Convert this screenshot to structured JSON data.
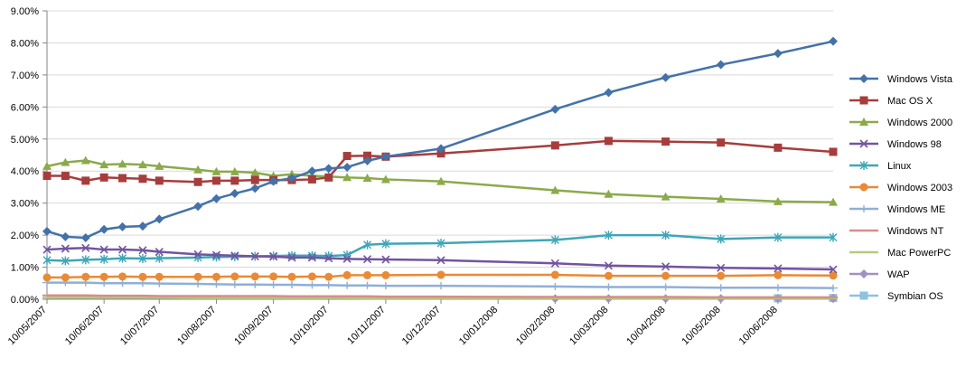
{
  "chart_data": {
    "type": "line",
    "title": "",
    "xlabel": "",
    "ylabel": "",
    "ylim": [
      0,
      9
    ],
    "y_ticks": [
      0,
      1,
      2,
      3,
      4,
      5,
      6,
      7,
      8,
      9
    ],
    "y_tick_labels": [
      "0.00%",
      "1.00%",
      "2.00%",
      "3.00%",
      "4.00%",
      "5.00%",
      "6.00%",
      "7.00%",
      "8.00%",
      "9.00%"
    ],
    "x_tick_labels": [
      "10/05/2007",
      "10/06/2007",
      "10/07/2007",
      "10/08/2007",
      "10/09/2007",
      "10/10/2007",
      "10/11/2007",
      "10/12/2007",
      "10/01/2008",
      "10/02/2008",
      "10/03/2008",
      "10/04/2008",
      "10/05/2008",
      "10/06/2008"
    ],
    "x_range": [
      "2007-05-10",
      "2008-07-10"
    ],
    "grid": "horizontal",
    "legend_position": "right",
    "x": [
      "2007-05-10",
      "2007-05-20",
      "2007-05-31",
      "2007-06-10",
      "2007-06-20",
      "2007-07-01",
      "2007-07-10",
      "2007-07-31",
      "2007-08-10",
      "2007-08-20",
      "2007-08-31",
      "2007-09-10",
      "2007-09-20",
      "2007-10-01",
      "2007-10-10",
      "2007-10-20",
      "2007-10-31",
      "2007-11-10",
      "2007-12-10",
      "2008-02-10",
      "2008-03-10",
      "2008-04-10",
      "2008-05-10",
      "2008-06-10",
      "2008-07-10"
    ],
    "series": [
      {
        "name": "Windows Vista",
        "color": "#4472A8",
        "marker": "diamond",
        "values": [
          2.12,
          1.95,
          1.92,
          2.18,
          2.26,
          2.28,
          2.5,
          2.9,
          3.14,
          3.3,
          3.46,
          3.68,
          3.78,
          4.0,
          4.08,
          4.12,
          4.32,
          4.45,
          4.7,
          5.93,
          6.45,
          6.92,
          7.32,
          7.67,
          8.05
        ]
      },
      {
        "name": "Mac OS X",
        "color": "#A63D3C",
        "marker": "square",
        "values": [
          3.85,
          3.85,
          3.7,
          3.8,
          3.78,
          3.76,
          3.7,
          3.66,
          3.7,
          3.7,
          3.72,
          3.72,
          3.72,
          3.74,
          3.8,
          4.47,
          4.48,
          4.45,
          4.55,
          4.8,
          4.94,
          4.92,
          4.89,
          4.73,
          4.6
        ]
      },
      {
        "name": "Windows 2000",
        "color": "#8BAA4A",
        "marker": "triangle",
        "values": [
          4.15,
          4.27,
          4.33,
          4.2,
          4.22,
          4.2,
          4.15,
          4.04,
          3.98,
          3.98,
          3.95,
          3.85,
          3.9,
          3.85,
          3.83,
          3.8,
          3.78,
          3.74,
          3.68,
          3.4,
          3.28,
          3.2,
          3.13,
          3.05,
          3.03
        ]
      },
      {
        "name": "Windows 98",
        "color": "#7254A0",
        "marker": "x",
        "values": [
          1.55,
          1.58,
          1.6,
          1.55,
          1.55,
          1.53,
          1.48,
          1.4,
          1.38,
          1.36,
          1.34,
          1.33,
          1.3,
          1.3,
          1.28,
          1.26,
          1.25,
          1.24,
          1.22,
          1.12,
          1.05,
          1.02,
          0.98,
          0.96,
          0.93
        ]
      },
      {
        "name": "Linux",
        "color": "#3EA6B8",
        "marker": "star",
        "values": [
          1.22,
          1.2,
          1.23,
          1.25,
          1.28,
          1.27,
          1.28,
          1.3,
          1.32,
          1.33,
          1.34,
          1.35,
          1.36,
          1.36,
          1.35,
          1.38,
          1.7,
          1.73,
          1.75,
          1.85,
          2.0,
          2.0,
          1.88,
          1.93,
          1.93
        ]
      },
      {
        "name": "Windows 2003",
        "color": "#E98A36",
        "marker": "circle",
        "values": [
          0.68,
          0.68,
          0.7,
          0.7,
          0.71,
          0.7,
          0.7,
          0.7,
          0.7,
          0.71,
          0.71,
          0.71,
          0.7,
          0.71,
          0.7,
          0.75,
          0.75,
          0.75,
          0.76,
          0.76,
          0.73,
          0.73,
          0.73,
          0.75,
          0.74
        ]
      },
      {
        "name": "Windows ME",
        "color": "#8FAFD8",
        "marker": "plus",
        "values": [
          0.52,
          0.52,
          0.52,
          0.5,
          0.5,
          0.5,
          0.49,
          0.48,
          0.47,
          0.46,
          0.46,
          0.45,
          0.45,
          0.44,
          0.44,
          0.43,
          0.43,
          0.42,
          0.42,
          0.4,
          0.38,
          0.38,
          0.36,
          0.36,
          0.35
        ]
      },
      {
        "name": "Windows NT",
        "color": "#D98C8C",
        "marker": "dash",
        "values": [
          0.12,
          0.12,
          0.12,
          0.11,
          0.11,
          0.11,
          0.1,
          0.1,
          0.1,
          0.1,
          0.1,
          0.1,
          0.09,
          0.09,
          0.09,
          0.09,
          0.09,
          0.08,
          0.08,
          0.07,
          0.07,
          0.07,
          0.06,
          0.06,
          0.06
        ]
      },
      {
        "name": "Mac PowerPC",
        "color": "#B3CB7B",
        "marker": "dash",
        "values": [
          0.05,
          0.05,
          0.05,
          0.05,
          0.05,
          0.05,
          0.05,
          0.04,
          0.04,
          0.04,
          0.04,
          0.04,
          0.04,
          0.04,
          0.04,
          0.04,
          0.03,
          0.03,
          0.03,
          0.03,
          0.03,
          0.03,
          0.03,
          0.03,
          0.03
        ]
      },
      {
        "name": "WAP",
        "color": "#A191C2",
        "marker": "diamond",
        "values": [
          null,
          null,
          null,
          null,
          null,
          null,
          null,
          null,
          null,
          null,
          null,
          null,
          null,
          null,
          null,
          null,
          null,
          null,
          null,
          0.02,
          0.02,
          0.02,
          0.02,
          0.02,
          0.02
        ]
      },
      {
        "name": "Symbian OS",
        "color": "#8EC3DE",
        "marker": "square",
        "values": [
          null,
          null,
          null,
          null,
          null,
          null,
          null,
          null,
          null,
          null,
          null,
          null,
          null,
          null,
          null,
          null,
          null,
          null,
          null,
          null,
          null,
          null,
          null,
          0.03,
          0.04
        ]
      }
    ]
  }
}
